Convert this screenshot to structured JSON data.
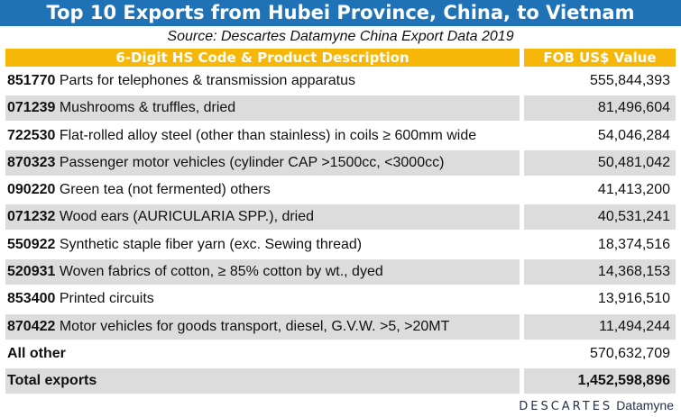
{
  "title": "Top 10 Exports from Hubei Province, China, to Vietnam",
  "source": "Source: Descartes Datamyne China Export Data  2019",
  "header": {
    "description": "6-Digit HS Code & Product Description",
    "value": "FOB US$ Value"
  },
  "rows": [
    {
      "code": "851770",
      "desc": "Parts for telephones & transmission apparatus",
      "value": "555,844,393"
    },
    {
      "code": "071239",
      "desc": "Mushrooms & truffles, dried",
      "value": "81,496,604"
    },
    {
      "code": "722530",
      "desc": "Flat-rolled alloy steel (other than stainless) in coils ≥ 600mm wide",
      "value": "54,046,284"
    },
    {
      "code": "870323",
      "desc": "Passenger motor vehicles (cylinder CAP >1500cc, <3000cc)",
      "value": "50,481,042"
    },
    {
      "code": "090220",
      "desc": "Green tea (not fermented) others",
      "value": "41,413,200"
    },
    {
      "code": "071232",
      "desc": "Wood ears (AURICULARIA SPP.), dried",
      "value": "40,531,241"
    },
    {
      "code": "550922",
      "desc": "Synthetic staple fiber yarn (exc. Sewing thread)",
      "value": "18,374,516"
    },
    {
      "code": "520931",
      "desc": "Woven fabrics of cotton, ≥ 85% cotton by wt., dyed",
      "value": "14,368,153"
    },
    {
      "code": "853400",
      "desc": "Printed circuits",
      "value": "13,916,510"
    },
    {
      "code": "870422",
      "desc": "Motor vehicles for goods transport, diesel, G.V.W. >5, >20MT",
      "value": "11,494,244"
    }
  ],
  "all_other": {
    "label": "All other",
    "value": "570,632,709"
  },
  "total": {
    "label": "Total exports",
    "value": "1,452,598,896"
  },
  "brand": {
    "name": "DESCARTES",
    "product": "Datamyne"
  }
}
